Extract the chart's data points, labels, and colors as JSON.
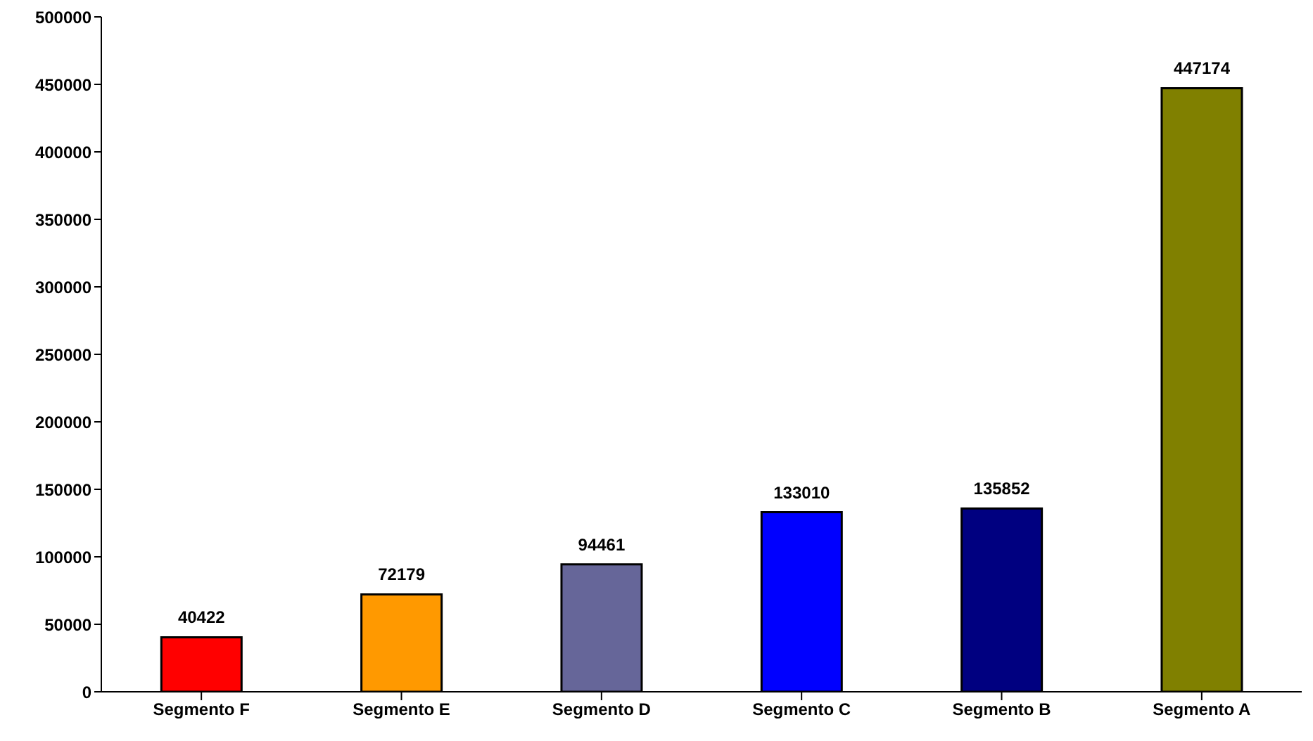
{
  "chart_data": {
    "type": "bar",
    "categories": [
      "Segmento F",
      "Segmento E",
      "Segmento D",
      "Segmento C",
      "Segmento B",
      "Segmento A"
    ],
    "values": [
      40422,
      72179,
      94461,
      133010,
      135852,
      447174
    ],
    "colors": [
      "#ff0000",
      "#ff9900",
      "#666699",
      "#0000ff",
      "#000080",
      "#808000"
    ],
    "ylim": [
      0,
      500000
    ],
    "yticks": [
      0,
      50000,
      100000,
      150000,
      200000,
      250000,
      300000,
      350000,
      400000,
      450000,
      500000
    ],
    "grid": false,
    "legend": false,
    "data_labels": true
  }
}
